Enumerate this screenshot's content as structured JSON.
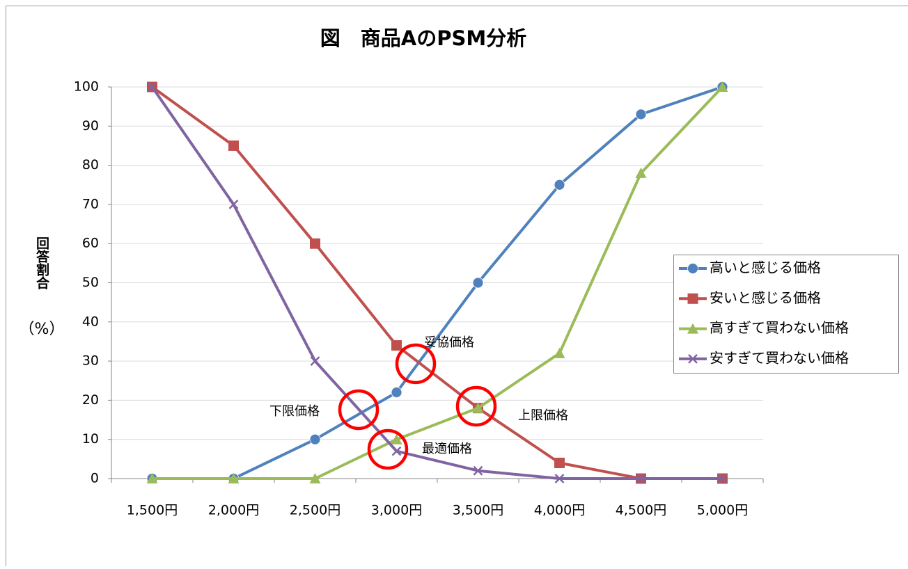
{
  "chart_data": {
    "type": "line",
    "title": "図　商品AのPSM分析",
    "y_label": "回答割合",
    "y_unit": "（%）",
    "categories": [
      "1,500円",
      "2,000円",
      "2,500円",
      "3,000円",
      "3,500円",
      "4,000円",
      "4,500円",
      "5,000円"
    ],
    "series": [
      {
        "name": "高いと感じる価格",
        "color": "#4f81bd",
        "marker": "circle",
        "values": [
          0,
          0,
          10,
          22,
          50,
          75,
          93,
          100
        ]
      },
      {
        "name": "安いと感じる価格",
        "color": "#c0504d",
        "marker": "square",
        "values": [
          100,
          85,
          60,
          34,
          18,
          4,
          0,
          0
        ]
      },
      {
        "name": "高すぎて買わない価格",
        "color": "#9bbb59",
        "marker": "triangle",
        "values": [
          0,
          0,
          0,
          10,
          18,
          32,
          78,
          100
        ]
      },
      {
        "name": "安すぎて買わない価格",
        "color": "#8064a2",
        "marker": "x",
        "values": [
          100,
          70,
          30,
          7,
          2,
          0,
          0,
          0
        ]
      }
    ],
    "annotations": [
      "妥協価格",
      "下限価格",
      "上限価格",
      "最適価格"
    ],
    "annotation_color": "#ff0000",
    "ylim": [
      0,
      100
    ],
    "yticks": [
      0,
      10,
      20,
      30,
      40,
      50,
      60,
      70,
      80,
      90,
      100
    ],
    "grid": true,
    "legend": "right"
  }
}
